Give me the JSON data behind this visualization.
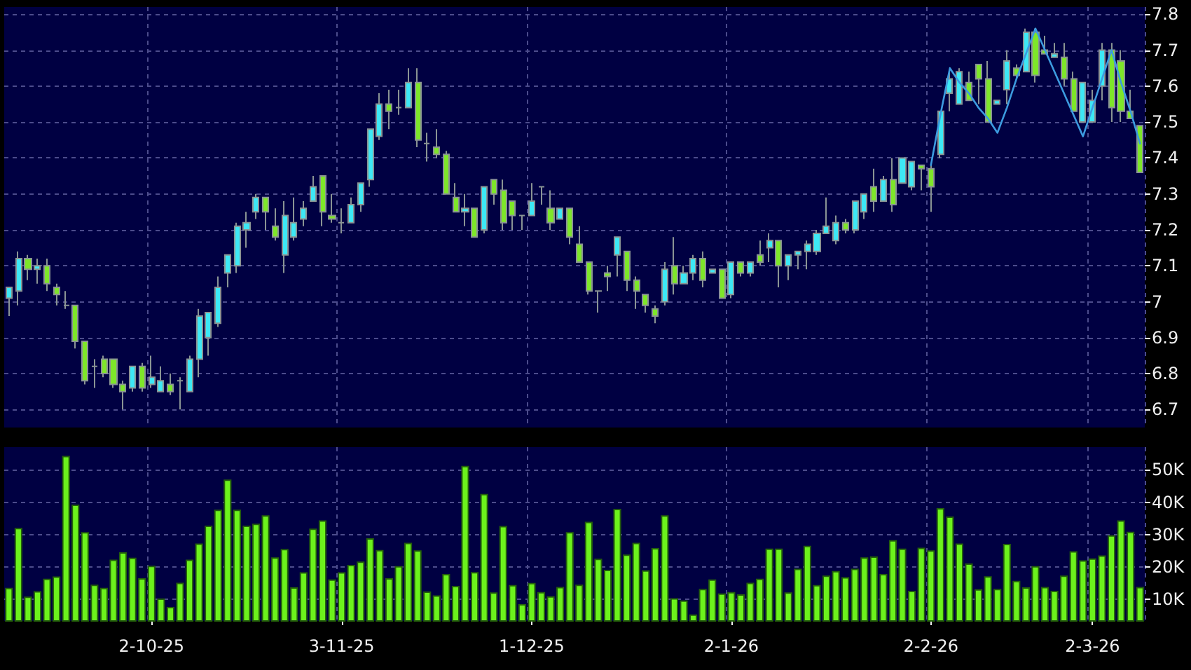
{
  "chart_data": [
    {
      "type": "candlestick",
      "categories": [
        null,
        null,
        null,
        null,
        null,
        null,
        null,
        null,
        null,
        null,
        null,
        null,
        null,
        null,
        null,
        null,
        null,
        null,
        null,
        null,
        null,
        null,
        null,
        null,
        null,
        null,
        null,
        null,
        null,
        null,
        null,
        null,
        null,
        null,
        null,
        null,
        null,
        null,
        null,
        null,
        null,
        null,
        null,
        null,
        null,
        null,
        null,
        null,
        null,
        null,
        null,
        null,
        null,
        null,
        null,
        null,
        null,
        null,
        null,
        null,
        null,
        null,
        null,
        null,
        null,
        null,
        null,
        null,
        null,
        null,
        null,
        null,
        null,
        null,
        null,
        null,
        null,
        null,
        null,
        null,
        null,
        null,
        null,
        null,
        null,
        null,
        null,
        null,
        null,
        null,
        null,
        null,
        null,
        null,
        null,
        null,
        null,
        null,
        null,
        null,
        null,
        null,
        null,
        null,
        null,
        null,
        null,
        null,
        null,
        null,
        null,
        null,
        null,
        null,
        null,
        null,
        null,
        null,
        null,
        null
      ],
      "ohlc": [
        [
          7.01,
          7.04,
          6.96,
          7.04
        ],
        [
          7.03,
          7.14,
          6.99,
          7.12
        ],
        [
          7.12,
          7.13,
          7.06,
          7.09
        ],
        [
          7.09,
          7.12,
          7.05,
          7.1
        ],
        [
          7.1,
          7.12,
          7.03,
          7.05
        ],
        [
          7.04,
          7.05,
          6.99,
          7.02
        ],
        [
          6.99,
          7.03,
          6.98,
          6.99
        ],
        [
          6.99,
          6.99,
          6.87,
          6.89
        ],
        [
          6.89,
          6.89,
          6.77,
          6.78
        ],
        [
          6.82,
          6.84,
          6.76,
          6.82
        ],
        [
          6.84,
          6.85,
          6.79,
          6.8
        ],
        [
          6.84,
          6.84,
          6.76,
          6.77
        ],
        [
          6.77,
          6.78,
          6.7,
          6.75
        ],
        [
          6.76,
          6.82,
          6.75,
          6.82
        ],
        [
          6.82,
          6.83,
          6.75,
          6.76
        ],
        [
          6.77,
          6.85,
          6.76,
          6.79
        ],
        [
          6.75,
          6.82,
          6.75,
          6.78
        ],
        [
          6.77,
          6.8,
          6.74,
          6.75
        ],
        [
          6.78,
          6.79,
          6.7,
          6.78
        ],
        [
          6.75,
          6.85,
          6.75,
          6.84
        ],
        [
          6.84,
          6.98,
          6.79,
          6.96
        ],
        [
          6.9,
          6.97,
          6.85,
          6.97
        ],
        [
          6.94,
          7.07,
          6.93,
          7.04
        ],
        [
          7.08,
          7.13,
          7.04,
          7.13
        ],
        [
          7.1,
          7.22,
          7.08,
          7.21
        ],
        [
          7.2,
          7.25,
          7.15,
          7.22
        ],
        [
          7.25,
          7.3,
          7.23,
          7.29
        ],
        [
          7.29,
          7.29,
          7.2,
          7.25
        ],
        [
          7.21,
          7.26,
          7.17,
          7.18
        ],
        [
          7.13,
          7.28,
          7.08,
          7.24
        ],
        [
          7.18,
          7.29,
          7.17,
          7.22
        ],
        [
          7.23,
          7.28,
          7.21,
          7.26
        ],
        [
          7.28,
          7.35,
          7.28,
          7.32
        ],
        [
          7.35,
          7.35,
          7.21,
          7.25
        ],
        [
          7.24,
          7.3,
          7.22,
          7.23
        ],
        [
          7.22,
          7.26,
          7.19,
          7.22
        ],
        [
          7.22,
          7.29,
          7.22,
          7.27
        ],
        [
          7.27,
          7.33,
          7.25,
          7.33
        ],
        [
          7.34,
          7.48,
          7.32,
          7.48
        ],
        [
          7.46,
          7.58,
          7.45,
          7.55
        ],
        [
          7.55,
          7.59,
          7.48,
          7.53
        ],
        [
          7.54,
          7.59,
          7.52,
          7.54
        ],
        [
          7.54,
          7.65,
          7.54,
          7.61
        ],
        [
          7.61,
          7.65,
          7.43,
          7.45
        ],
        [
          7.44,
          7.47,
          7.39,
          7.44
        ],
        [
          7.43,
          7.48,
          7.4,
          7.41
        ],
        [
          7.41,
          7.42,
          7.3,
          7.3
        ],
        [
          7.29,
          7.33,
          7.25,
          7.25
        ],
        [
          7.25,
          7.3,
          7.21,
          7.26
        ],
        [
          7.26,
          7.26,
          7.18,
          7.18
        ],
        [
          7.2,
          7.32,
          7.19,
          7.32
        ],
        [
          7.34,
          7.34,
          7.27,
          7.3
        ],
        [
          7.31,
          7.34,
          7.2,
          7.22
        ],
        [
          7.28,
          7.28,
          7.2,
          7.24
        ],
        [
          7.24,
          7.24,
          7.2,
          7.24
        ],
        [
          7.24,
          7.33,
          7.24,
          7.28
        ],
        [
          7.32,
          7.32,
          7.27,
          7.32
        ],
        [
          7.26,
          7.31,
          7.2,
          7.22
        ],
        [
          7.23,
          7.26,
          7.23,
          7.26
        ],
        [
          7.26,
          7.26,
          7.16,
          7.18
        ],
        [
          7.16,
          7.21,
          7.11,
          7.11
        ],
        [
          7.11,
          7.11,
          7.02,
          7.03
        ],
        [
          7.03,
          7.03,
          6.97,
          7.03
        ],
        [
          7.08,
          7.1,
          7.03,
          7.07
        ],
        [
          7.13,
          7.18,
          7.07,
          7.18
        ],
        [
          7.14,
          7.14,
          7.03,
          7.06
        ],
        [
          7.06,
          7.07,
          6.98,
          7.03
        ],
        [
          7.02,
          7.02,
          6.97,
          6.99
        ],
        [
          6.98,
          6.99,
          6.94,
          6.96
        ],
        [
          7.0,
          7.11,
          6.99,
          7.09
        ],
        [
          7.1,
          7.18,
          7.02,
          7.05
        ],
        [
          7.05,
          7.1,
          7.05,
          7.08
        ],
        [
          7.08,
          7.13,
          7.06,
          7.12
        ],
        [
          7.12,
          7.14,
          7.04,
          7.06
        ],
        [
          7.08,
          7.09,
          7.08,
          7.09
        ],
        [
          7.09,
          7.09,
          7.01,
          7.01
        ],
        [
          7.02,
          7.11,
          7.01,
          7.11
        ],
        [
          7.11,
          7.11,
          7.07,
          7.08
        ],
        [
          7.08,
          7.11,
          7.07,
          7.11
        ],
        [
          7.13,
          7.17,
          7.1,
          7.11
        ],
        [
          7.15,
          7.19,
          7.11,
          7.17
        ],
        [
          7.17,
          7.17,
          7.04,
          7.1
        ],
        [
          7.1,
          7.13,
          7.06,
          7.13
        ],
        [
          7.13,
          7.14,
          7.09,
          7.14
        ],
        [
          7.14,
          7.17,
          7.09,
          7.16
        ],
        [
          7.14,
          7.2,
          7.13,
          7.19
        ],
        [
          7.19,
          7.29,
          7.19,
          7.21
        ],
        [
          7.17,
          7.24,
          7.16,
          7.22
        ],
        [
          7.22,
          7.23,
          7.19,
          7.2
        ],
        [
          7.2,
          7.28,
          7.19,
          7.28
        ],
        [
          7.25,
          7.3,
          7.23,
          7.3
        ],
        [
          7.32,
          7.37,
          7.25,
          7.28
        ],
        [
          7.28,
          7.35,
          7.28,
          7.34
        ],
        [
          7.34,
          7.4,
          7.25,
          7.27
        ],
        [
          7.33,
          7.4,
          7.33,
          7.4
        ],
        [
          7.32,
          7.39,
          7.31,
          7.39
        ],
        [
          7.38,
          7.38,
          7.31,
          7.37
        ],
        [
          7.37,
          7.38,
          7.25,
          7.32
        ],
        [
          7.41,
          7.53,
          7.4,
          7.53
        ],
        [
          7.58,
          7.64,
          7.53,
          7.62
        ],
        [
          7.55,
          7.65,
          7.55,
          7.64
        ],
        [
          7.61,
          7.64,
          7.56,
          7.56
        ],
        [
          7.66,
          7.66,
          7.55,
          7.62
        ],
        [
          7.62,
          7.67,
          7.5,
          7.5
        ],
        [
          7.55,
          7.56,
          7.55,
          7.56
        ],
        [
          7.59,
          7.7,
          7.55,
          7.67
        ],
        [
          7.65,
          7.66,
          7.62,
          7.63
        ],
        [
          7.64,
          7.76,
          7.64,
          7.75
        ],
        [
          7.75,
          7.76,
          7.61,
          7.63
        ],
        [
          7.7,
          7.74,
          7.69,
          7.69
        ],
        [
          7.68,
          7.72,
          7.68,
          7.69
        ],
        [
          7.68,
          7.72,
          7.6,
          7.62
        ],
        [
          7.62,
          7.64,
          7.53,
          7.53
        ],
        [
          7.5,
          7.61,
          7.5,
          7.61
        ],
        [
          7.5,
          7.59,
          7.5,
          7.56
        ],
        [
          7.6,
          7.72,
          7.56,
          7.7
        ],
        [
          7.7,
          7.72,
          7.5,
          7.54
        ],
        [
          7.67,
          7.7,
          7.5,
          7.53
        ],
        [
          7.53,
          7.59,
          7.51,
          7.51
        ],
        [
          7.49,
          7.49,
          7.36,
          7.36
        ]
      ],
      "colors": [
        "#3de8f5",
        "#3de8f5",
        "#7ee62a",
        "#3de8f5",
        "#7ee62a",
        "#7ee62a",
        "#8c8c8c",
        "#7ee62a",
        "#7ee62a",
        "#8c8c8c",
        "#7ee62a",
        "#7ee62a",
        "#7ee62a",
        "#3de8f5",
        "#7ee62a",
        "#3de8f5",
        "#3de8f5",
        "#7ee62a",
        "#8c8c8c",
        "#3de8f5",
        "#3de8f5",
        "#3de8f5",
        "#3de8f5",
        "#3de8f5",
        "#3de8f5",
        "#3de8f5",
        "#3de8f5",
        "#7ee62a",
        "#7ee62a",
        "#3de8f5",
        "#3de8f5",
        "#3de8f5",
        "#3de8f5",
        "#7ee62a",
        "#7ee62a",
        "#8c8c8c",
        "#3de8f5",
        "#3de8f5",
        "#3de8f5",
        "#3de8f5",
        "#7ee62a",
        "#8c8c8c",
        "#3de8f5",
        "#7ee62a",
        "#8c8c8c",
        "#7ee62a",
        "#7ee62a",
        "#7ee62a",
        "#3de8f5",
        "#7ee62a",
        "#3de8f5",
        "#7ee62a",
        "#7ee62a",
        "#7ee62a",
        "#8c8c8c",
        "#3de8f5",
        "#8c8c8c",
        "#7ee62a",
        "#3de8f5",
        "#7ee62a",
        "#7ee62a",
        "#7ee62a",
        "#8c8c8c",
        "#7ee62a",
        "#3de8f5",
        "#7ee62a",
        "#7ee62a",
        "#7ee62a",
        "#7ee62a",
        "#3de8f5",
        "#7ee62a",
        "#3de8f5",
        "#3de8f5",
        "#7ee62a",
        "#3de8f5",
        "#7ee62a",
        "#3de8f5",
        "#7ee62a",
        "#3de8f5",
        "#7ee62a",
        "#3de8f5",
        "#7ee62a",
        "#3de8f5",
        "#3de8f5",
        "#3de8f5",
        "#3de8f5",
        "#3de8f5",
        "#3de8f5",
        "#7ee62a",
        "#3de8f5",
        "#3de8f5",
        "#7ee62a",
        "#3de8f5",
        "#7ee62a",
        "#3de8f5",
        "#3de8f5",
        "#7ee62a",
        "#7ee62a",
        "#3de8f5",
        "#3de8f5",
        "#3de8f5",
        "#7ee62a",
        "#7ee62a",
        "#7ee62a",
        "#3de8f5",
        "#3de8f5",
        "#7ee62a",
        "#3de8f5",
        "#7ee62a",
        "#7ee62a",
        "#3de8f5",
        "#7ee62a",
        "#7ee62a",
        "#3de8f5",
        "#3de8f5",
        "#3de8f5",
        "#7ee62a",
        "#7ee62a",
        "#7ee62a",
        "#7ee62a"
      ],
      "series": [
        {
          "type": "line",
          "color": "#3c9be0",
          "values": [
            null,
            null,
            null,
            null,
            null,
            null,
            null,
            null,
            null,
            null,
            null,
            null,
            null,
            null,
            null,
            null,
            null,
            null,
            null,
            null,
            null,
            null,
            null,
            null,
            null,
            null,
            null,
            null,
            null,
            null,
            null,
            null,
            null,
            null,
            null,
            null,
            null,
            null,
            null,
            null,
            null,
            null,
            null,
            null,
            null,
            null,
            null,
            null,
            null,
            null,
            null,
            null,
            null,
            null,
            null,
            null,
            null,
            null,
            null,
            null,
            null,
            null,
            null,
            null,
            null,
            null,
            null,
            null,
            null,
            null,
            null,
            null,
            null,
            null,
            null,
            null,
            null,
            null,
            null,
            null,
            null,
            null,
            null,
            null,
            null,
            null,
            null,
            null,
            null,
            null,
            null,
            null,
            null,
            null,
            null,
            null,
            null,
            7.38,
            7.52,
            7.65,
            7.61,
            7.58,
            7.54,
            7.51,
            7.47,
            7.54,
            7.62,
            7.69,
            7.76,
            7.7,
            7.64,
            7.58,
            7.52,
            7.46,
            7.54,
            7.62,
            7.7,
            7.61,
            7.53,
            7.44
          ]
        }
      ],
      "ylim": [
        6.65,
        7.82
      ],
      "yticks": [
        6.7,
        6.8,
        6.9,
        7,
        7.1,
        7.2,
        7.3,
        7.4,
        7.5,
        7.6,
        7.7,
        7.8
      ],
      "grid": true,
      "tick_labels": "y"
    },
    {
      "type": "bar",
      "categories": [
        null,
        null,
        null,
        null,
        null,
        null,
        null,
        null,
        null,
        null,
        null,
        null,
        null,
        null,
        null,
        "2-10-25",
        null,
        null,
        null,
        null,
        null,
        null,
        null,
        null,
        null,
        null,
        null,
        null,
        null,
        null,
        null,
        null,
        null,
        null,
        null,
        "3-11-25",
        null,
        null,
        null,
        null,
        null,
        null,
        null,
        null,
        null,
        null,
        null,
        null,
        null,
        null,
        null,
        null,
        null,
        null,
        null,
        "1-12-25",
        null,
        null,
        null,
        null,
        null,
        null,
        null,
        null,
        null,
        null,
        null,
        null,
        null,
        null,
        null,
        null,
        null,
        null,
        null,
        null,
        "2-1-26",
        null,
        null,
        null,
        null,
        null,
        null,
        null,
        null,
        null,
        null,
        null,
        null,
        null,
        null,
        null,
        null,
        null,
        null,
        null,
        null,
        "2-2-26",
        null,
        null,
        null,
        null,
        null,
        null,
        null,
        null,
        null,
        null,
        null,
        null,
        null,
        null,
        null,
        null,
        "2-3-26",
        null,
        null,
        null,
        null,
        null
      ],
      "values": [
        13600,
        32100,
        10900,
        12600,
        16400,
        17100,
        54300,
        39300,
        30800,
        14600,
        13600,
        22300,
        24600,
        22900,
        16600,
        20400,
        10300,
        7700,
        15200,
        22300,
        27300,
        32800,
        37700,
        47000,
        37700,
        32800,
        33400,
        36000,
        23000,
        25600,
        13800,
        18400,
        31900,
        34400,
        16200,
        18400,
        20700,
        21700,
        28900,
        25300,
        16600,
        20300,
        27500,
        25200,
        12500,
        11300,
        17900,
        14200,
        51200,
        18500,
        42600,
        12200,
        32700,
        14500,
        8600,
        15100,
        12300,
        11000,
        13900,
        30800,
        14600,
        34000,
        22600,
        19200,
        38000,
        23900,
        27500,
        19000,
        25900,
        36000,
        10400,
        9700,
        5400,
        13300,
        16200,
        11900,
        12300,
        11600,
        15200,
        16400,
        25700,
        25700,
        12200,
        19500,
        26600,
        14500,
        17400,
        18800,
        16900,
        19500,
        23000,
        23300,
        17900,
        28300,
        25700,
        12700,
        26000,
        25200,
        38200,
        35600,
        27300,
        21100,
        13200,
        17200,
        13300,
        27200,
        15800,
        13800,
        20300,
        13900,
        12700,
        17400,
        24900,
        22100,
        22700,
        23600,
        29800,
        34400,
        30900,
        13900
      ],
      "color": "#6cf21c",
      "ylim": [
        3400,
        57000
      ],
      "yticks": [
        {
          "value": 10000,
          "label": "10K"
        },
        {
          "value": 20000,
          "label": "20K"
        },
        {
          "value": 30000,
          "label": "30K"
        },
        {
          "value": 40000,
          "label": "40K"
        },
        {
          "value": 50000,
          "label": "50K"
        }
      ],
      "grid": true
    }
  ]
}
